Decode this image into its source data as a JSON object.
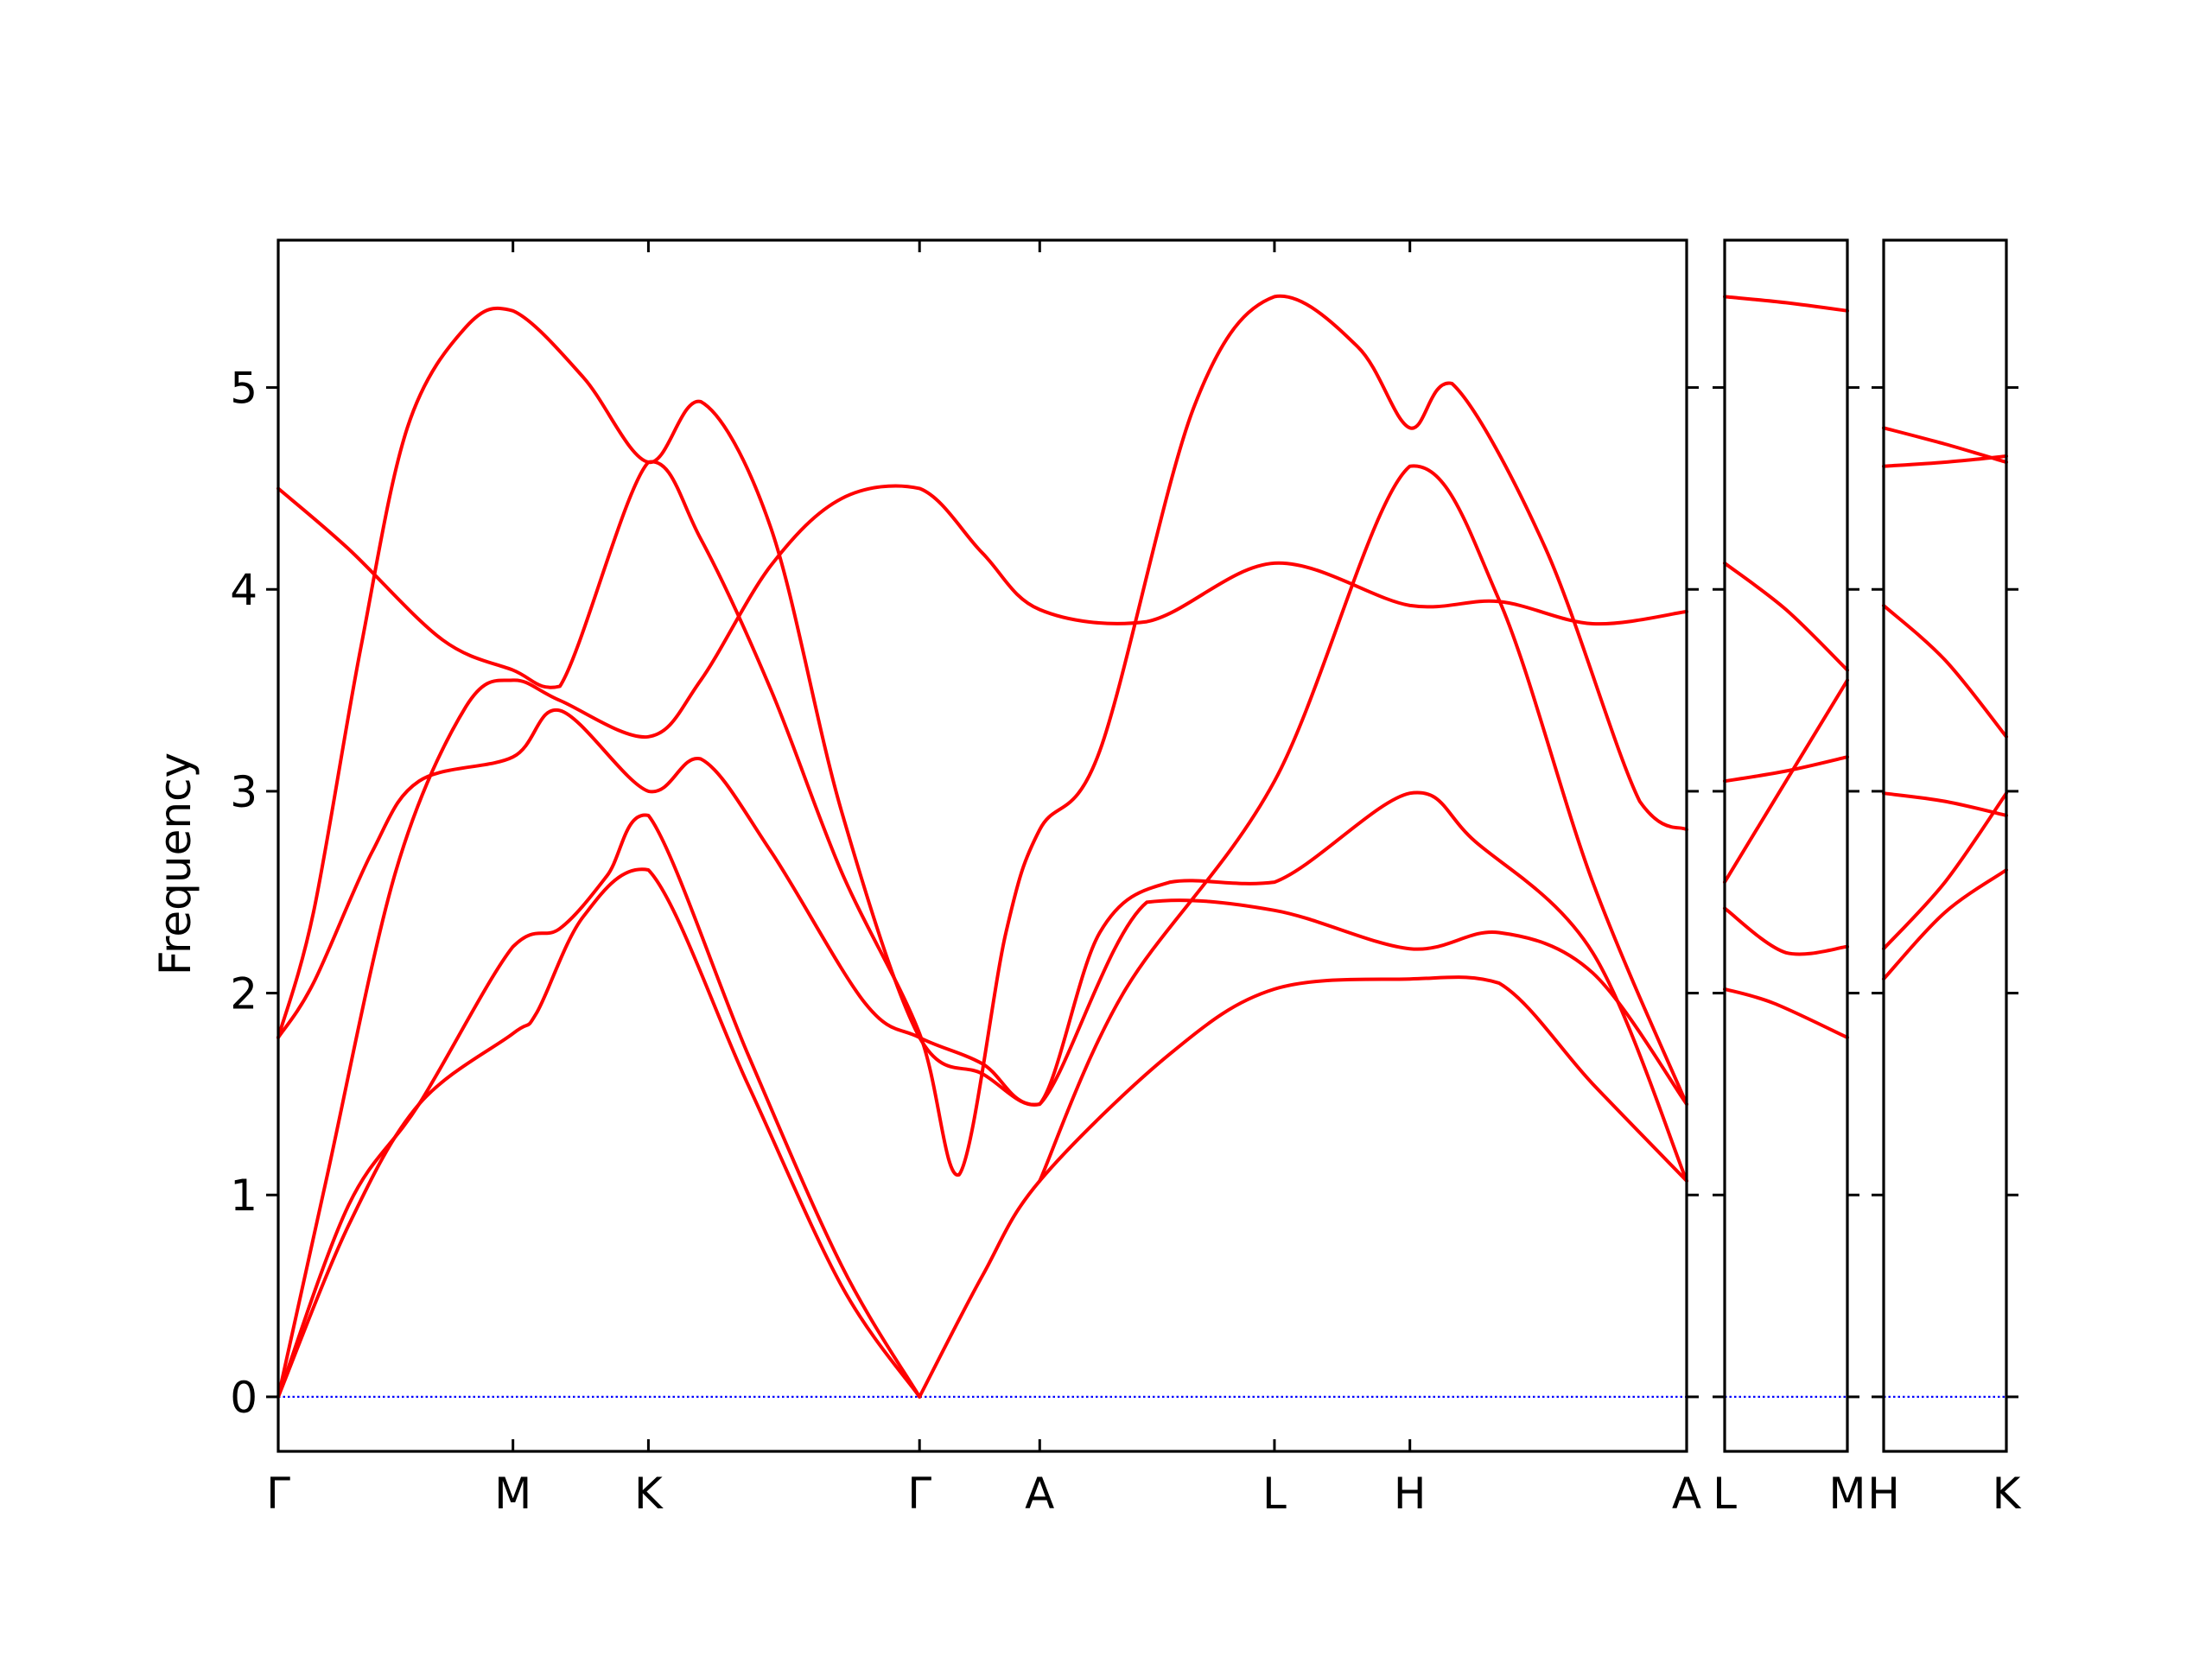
{
  "chart_data": {
    "type": "line",
    "ylabel": "Frequency",
    "ylim": [
      -0.27,
      5.73
    ],
    "yticks": [
      0,
      1,
      2,
      3,
      4,
      5
    ],
    "zero_line": true,
    "colors": {
      "bands": "#ff0000",
      "zero_line": "#0000ff",
      "axes": "#000000"
    },
    "segments": [
      {
        "labels": [
          "Γ",
          "M",
          "K",
          "Γ",
          "A",
          "L",
          "H",
          "A"
        ],
        "ticks": [
          0,
          1,
          1.577,
          2.732,
          3.244,
          4.244,
          4.821,
          6.0
        ],
        "bands": [
          [
            [
              0,
              0
            ],
            [
              0.3,
              0.85
            ],
            [
              0.6,
              1.45
            ],
            [
              1.0,
              1.8
            ],
            [
              1.1,
              1.9
            ],
            [
              1.3,
              2.38
            ],
            [
              1.577,
              2.61
            ],
            [
              2.0,
              1.55
            ],
            [
              2.4,
              0.55
            ],
            [
              2.732,
              0
            ]
          ],
          [
            [
              0,
              0
            ],
            [
              0.3,
              0.95
            ],
            [
              0.6,
              1.45
            ],
            [
              1.0,
              2.23
            ],
            [
              1.2,
              2.32
            ],
            [
              1.4,
              2.58
            ],
            [
              1.577,
              2.88
            ],
            [
              2.0,
              1.7
            ],
            [
              2.4,
              0.65
            ],
            [
              2.732,
              0
            ]
          ],
          [
            [
              0,
              0
            ],
            [
              0.2,
              1.05
            ],
            [
              0.5,
              2.6
            ],
            [
              0.8,
              3.42
            ],
            [
              1.0,
              3.55
            ],
            [
              1.2,
              3.45
            ],
            [
              1.577,
              3.27
            ],
            [
              1.8,
              3.55
            ],
            [
              2.1,
              4.12
            ],
            [
              2.4,
              4.45
            ],
            [
              2.732,
              4.5
            ],
            [
              3.0,
              4.18
            ],
            [
              3.244,
              3.9
            ],
            [
              3.7,
              3.84
            ],
            [
              4.244,
              4.13
            ],
            [
              4.821,
              3.92
            ],
            [
              5.2,
              3.94
            ],
            [
              5.6,
              3.83
            ],
            [
              6.0,
              3.89
            ]
          ],
          [
            [
              0,
              1.78
            ],
            [
              0.15,
              2.05
            ],
            [
              0.4,
              2.7
            ],
            [
              0.6,
              3.05
            ],
            [
              1.0,
              3.17
            ],
            [
              1.2,
              3.4
            ],
            [
              1.577,
              3.0
            ],
            [
              1.8,
              3.16
            ],
            [
              2.1,
              2.7
            ],
            [
              2.5,
              1.95
            ],
            [
              2.732,
              1.78
            ],
            [
              3.0,
              1.65
            ],
            [
              3.244,
              1.45
            ],
            [
              3.7,
              2.45
            ],
            [
              4.244,
              2.41
            ],
            [
              4.821,
              2.22
            ],
            [
              5.2,
              2.3
            ],
            [
              5.6,
              2.1
            ],
            [
              6.0,
              1.45
            ]
          ],
          [
            [
              0,
              1.78
            ],
            [
              0.15,
              2.4
            ],
            [
              0.35,
              3.7
            ],
            [
              0.55,
              4.8
            ],
            [
              0.8,
              5.3
            ],
            [
              1.0,
              5.38
            ],
            [
              1.3,
              5.05
            ],
            [
              1.577,
              4.63
            ],
            [
              1.8,
              4.93
            ],
            [
              2.1,
              4.3
            ],
            [
              2.4,
              2.9
            ],
            [
              2.732,
              1.78
            ],
            [
              3.0,
              1.6
            ],
            [
              3.244,
              1.45
            ],
            [
              3.5,
              2.3
            ],
            [
              3.8,
              2.55
            ],
            [
              4.244,
              2.55
            ],
            [
              4.821,
              2.99
            ],
            [
              5.1,
              2.75
            ],
            [
              5.6,
              2.2
            ],
            [
              6.0,
              1.07
            ]
          ],
          [
            [
              0,
              4.5
            ],
            [
              0.3,
              4.2
            ],
            [
              0.7,
              3.75
            ],
            [
              1.0,
              3.6
            ],
            [
              1.2,
              3.52
            ],
            [
              1.577,
              4.63
            ],
            [
              1.8,
              4.25
            ],
            [
              2.1,
              3.5
            ],
            [
              2.4,
              2.6
            ],
            [
              2.732,
              1.8
            ],
            [
              2.9,
              1.1
            ],
            [
              3.1,
              2.3
            ],
            [
              3.244,
              2.81
            ],
            [
              3.5,
              3.2
            ],
            [
              3.9,
              4.9
            ],
            [
              4.244,
              5.45
            ],
            [
              4.6,
              5.2
            ],
            [
              4.821,
              4.8
            ],
            [
              5.0,
              5.02
            ],
            [
              5.4,
              4.2
            ],
            [
              5.8,
              2.95
            ],
            [
              6.0,
              2.81
            ]
          ],
          [
            [
              2.732,
              0
            ],
            [
              3.0,
              0.6
            ],
            [
              3.244,
              1.07
            ],
            [
              3.8,
              1.7
            ],
            [
              4.244,
              2.02
            ],
            [
              4.821,
              2.07
            ],
            [
              5.2,
              2.05
            ],
            [
              5.6,
              1.55
            ],
            [
              6.0,
              1.07
            ]
          ],
          [
            [
              3.244,
              1.07
            ],
            [
              3.6,
              2.0
            ],
            [
              4.244,
              3.05
            ],
            [
              4.821,
              4.61
            ],
            [
              5.2,
              3.95
            ],
            [
              5.6,
              2.55
            ],
            [
              6.0,
              1.45
            ]
          ]
        ]
      },
      {
        "labels": [
          "L",
          "M"
        ],
        "ticks": [
          0,
          1
        ],
        "bands": [
          [
            [
              0,
              2.02
            ],
            [
              0.4,
              1.95
            ],
            [
              1,
              1.78
            ]
          ],
          [
            [
              0,
              2.42
            ],
            [
              0.5,
              2.2
            ],
            [
              1,
              2.23
            ]
          ],
          [
            [
              0,
              2.55
            ],
            [
              0.5,
              3.05
            ],
            [
              1,
              3.55
            ]
          ],
          [
            [
              0,
              3.05
            ],
            [
              0.5,
              3.1
            ],
            [
              1,
              3.17
            ]
          ],
          [
            [
              0,
              4.13
            ],
            [
              0.5,
              3.9
            ],
            [
              1,
              3.6
            ]
          ],
          [
            [
              0,
              5.45
            ],
            [
              0.5,
              5.42
            ],
            [
              1,
              5.38
            ]
          ]
        ]
      },
      {
        "labels": [
          "H",
          "K"
        ],
        "ticks": [
          0,
          1
        ],
        "bands": [
          [
            [
              0,
              2.07
            ],
            [
              0.5,
              2.4
            ],
            [
              1,
              2.61
            ]
          ],
          [
            [
              0,
              2.22
            ],
            [
              0.5,
              2.55
            ],
            [
              1,
              2.99
            ]
          ],
          [
            [
              0,
              2.99
            ],
            [
              0.5,
              2.95
            ],
            [
              1,
              2.88
            ]
          ],
          [
            [
              0,
              3.92
            ],
            [
              0.5,
              3.65
            ],
            [
              1,
              3.27
            ]
          ],
          [
            [
              0,
              4.61
            ],
            [
              0.5,
              4.63
            ],
            [
              1,
              4.66
            ]
          ],
          [
            [
              0,
              4.8
            ],
            [
              0.5,
              4.72
            ],
            [
              1,
              4.63
            ]
          ]
        ]
      }
    ]
  }
}
